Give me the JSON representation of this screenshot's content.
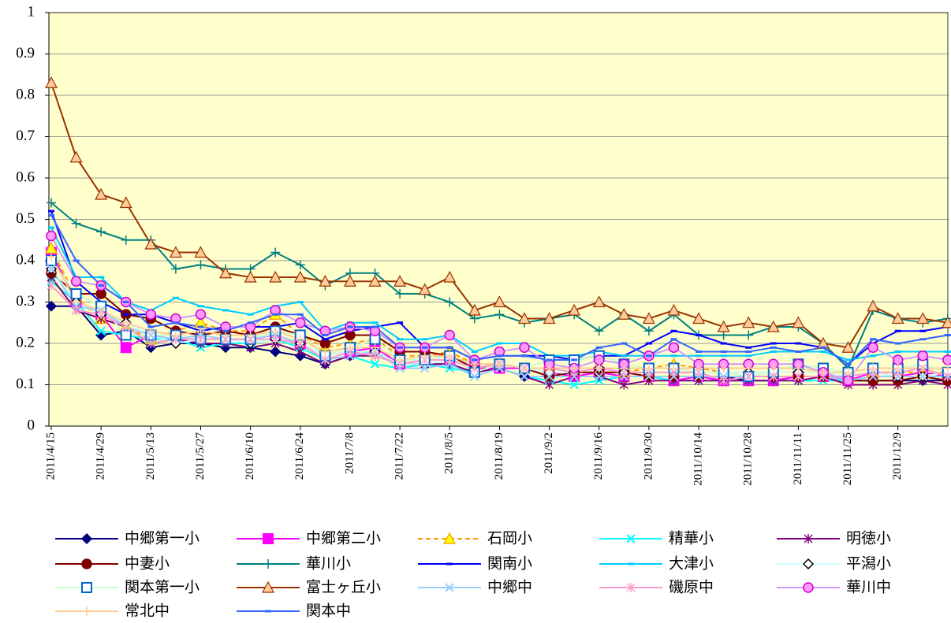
{
  "chart_data": {
    "type": "line",
    "categories": [
      "2011/4/15",
      null,
      "2011/4/29",
      null,
      "2011/5/13",
      null,
      "2011/5/27",
      null,
      "2011/6/10",
      null,
      "2011/6/24",
      null,
      "2011/7/8",
      null,
      "2011/7/22",
      null,
      "2011/8/5",
      null,
      "2011/8/19",
      null,
      "2011/9/2",
      null,
      "2011/9/16",
      null,
      "2011/9/30",
      null,
      "2011/10/14",
      null,
      "2011/10/28",
      null,
      "2011/11/11",
      null,
      "2011/11/25",
      null,
      "2011/12/9",
      null,
      null
    ],
    "ylim": [
      0,
      1
    ],
    "yticks": [
      0,
      0.1,
      0.2,
      0.3,
      0.4,
      0.5,
      0.6,
      0.7,
      0.8,
      0.9,
      1
    ],
    "grid": true,
    "legend": "bottom",
    "background": "#ffffcc",
    "series": [
      {
        "name": "中郷第一小",
        "color": "#000080",
        "marker": "diamond",
        "marker_fill": "#000080",
        "values": [
          0.29,
          0.29,
          0.22,
          0.23,
          0.19,
          0.2,
          0.2,
          0.19,
          0.19,
          0.18,
          0.17,
          0.15,
          0.17,
          0.18,
          0.15,
          0.15,
          0.15,
          0.13,
          0.14,
          0.12,
          0.12,
          0.12,
          0.12,
          0.12,
          0.12,
          0.12,
          0.12,
          0.12,
          0.11,
          0.11,
          0.12,
          0.12,
          0.11,
          0.11,
          0.11,
          0.11,
          0.11
        ]
      },
      {
        "name": "中郷第二小",
        "color": "#ff00ff",
        "marker": "square",
        "marker_fill": "#ff00ff",
        "values": [
          0.42,
          0.3,
          0.27,
          0.19,
          0.22,
          0.22,
          0.21,
          0.21,
          0.21,
          0.22,
          0.2,
          0.17,
          0.18,
          0.19,
          0.15,
          0.16,
          0.16,
          0.14,
          0.14,
          0.14,
          0.13,
          0.12,
          0.13,
          0.12,
          0.12,
          0.11,
          0.12,
          0.11,
          0.11,
          0.11,
          0.12,
          0.12,
          0.11,
          0.13,
          0.12,
          0.13,
          0.12
        ]
      },
      {
        "name": "石岡小",
        "color": "#ff9900",
        "marker": "triangle",
        "marker_fill": "#ffff00",
        "dash": true,
        "values": [
          0.43,
          0.31,
          0.26,
          0.24,
          0.21,
          0.23,
          0.25,
          0.23,
          0.23,
          0.27,
          0.22,
          0.19,
          0.2,
          0.21,
          0.17,
          0.17,
          0.18,
          0.15,
          0.15,
          0.14,
          0.14,
          0.14,
          0.14,
          0.13,
          0.14,
          0.15,
          0.14,
          0.13,
          0.13,
          0.13,
          0.13,
          0.13,
          0.12,
          0.13,
          0.13,
          0.13,
          0.13
        ]
      },
      {
        "name": "精華小",
        "color": "#00ffff",
        "marker": "x",
        "marker_fill": "none",
        "values": [
          0.35,
          0.3,
          0.23,
          0.22,
          0.21,
          0.21,
          0.19,
          0.2,
          0.2,
          0.21,
          0.19,
          0.16,
          0.17,
          0.15,
          0.14,
          0.15,
          0.14,
          0.13,
          0.14,
          0.12,
          0.11,
          0.1,
          0.11,
          0.12,
          0.12,
          0.11,
          0.11,
          0.11,
          0.11,
          0.11,
          0.11,
          0.11,
          0.11,
          0.12,
          0.12,
          0.12,
          0.12
        ]
      },
      {
        "name": "明徳小",
        "color": "#800080",
        "marker": "star",
        "marker_fill": "none",
        "values": [
          0.36,
          0.28,
          0.26,
          0.24,
          0.2,
          0.21,
          0.2,
          0.2,
          0.19,
          0.2,
          0.18,
          0.15,
          0.17,
          0.17,
          0.15,
          0.15,
          0.15,
          0.13,
          0.14,
          0.12,
          0.1,
          0.12,
          0.12,
          0.1,
          0.11,
          0.11,
          0.11,
          0.11,
          0.11,
          0.11,
          0.11,
          0.12,
          0.1,
          0.1,
          0.1,
          0.11,
          0.1
        ]
      },
      {
        "name": "中妻小",
        "color": "#800000",
        "marker": "circle",
        "marker_fill": "#800000",
        "values": [
          0.37,
          0.32,
          0.32,
          0.27,
          0.26,
          0.23,
          0.22,
          0.23,
          0.22,
          0.24,
          0.22,
          0.2,
          0.22,
          0.22,
          0.18,
          0.18,
          0.17,
          0.14,
          0.15,
          0.14,
          0.12,
          0.13,
          0.13,
          0.13,
          0.12,
          0.12,
          0.12,
          0.12,
          0.12,
          0.12,
          0.12,
          0.12,
          0.11,
          0.11,
          0.11,
          0.12,
          0.11
        ]
      },
      {
        "name": "華川小",
        "color": "#008080",
        "marker": "plus",
        "marker_fill": "none",
        "values": [
          0.54,
          0.49,
          0.47,
          0.45,
          0.45,
          0.38,
          0.39,
          0.38,
          0.38,
          0.42,
          0.39,
          0.34,
          0.37,
          0.37,
          0.32,
          0.32,
          0.3,
          0.26,
          0.27,
          0.25,
          0.26,
          0.27,
          0.23,
          0.27,
          0.23,
          0.27,
          0.22,
          0.22,
          0.22,
          0.24,
          0.24,
          0.2,
          0.14,
          0.28,
          0.26,
          0.25,
          0.26
        ]
      },
      {
        "name": "関南小",
        "color": "#0000ff",
        "marker": "dash",
        "marker_fill": "#0000ff",
        "values": [
          0.52,
          0.35,
          0.3,
          0.27,
          0.27,
          0.25,
          0.23,
          0.24,
          0.24,
          0.24,
          0.25,
          0.21,
          0.23,
          0.24,
          0.25,
          0.19,
          0.19,
          0.16,
          0.17,
          0.17,
          0.17,
          0.16,
          0.17,
          0.17,
          0.2,
          0.23,
          0.22,
          0.2,
          0.19,
          0.2,
          0.2,
          0.19,
          0.15,
          0.2,
          0.23,
          0.23,
          0.24
        ]
      },
      {
        "name": "大津小",
        "color": "#00ccff",
        "marker": "dash",
        "marker_fill": "#00ccff",
        "values": [
          0.48,
          0.36,
          0.36,
          0.3,
          0.28,
          0.31,
          0.29,
          0.28,
          0.27,
          0.29,
          0.3,
          0.23,
          0.25,
          0.25,
          0.21,
          0.21,
          0.22,
          0.18,
          0.2,
          0.2,
          0.17,
          0.17,
          0.18,
          0.17,
          0.17,
          0.17,
          0.17,
          0.17,
          0.17,
          0.18,
          0.18,
          0.18,
          0.16,
          0.17,
          0.18,
          0.18,
          0.18
        ]
      },
      {
        "name": "平潟小",
        "color": "#ccffff",
        "marker": "diamond",
        "marker_fill": "#ffffff",
        "marker_stroke": "#000000",
        "values": [
          0.38,
          0.3,
          0.27,
          0.25,
          0.22,
          0.2,
          0.21,
          0.21,
          0.2,
          0.21,
          0.2,
          0.17,
          0.18,
          0.18,
          0.15,
          0.15,
          0.16,
          0.14,
          0.15,
          0.14,
          0.13,
          0.13,
          0.14,
          0.13,
          0.13,
          0.13,
          0.13,
          0.13,
          0.13,
          0.13,
          0.13,
          0.13,
          0.12,
          0.13,
          0.12,
          0.12,
          0.13
        ]
      },
      {
        "name": "関本第一小",
        "color": "#ccffcc",
        "marker": "square",
        "marker_fill": "#ffffff",
        "marker_stroke": "#0066cc",
        "values": [
          0.4,
          0.32,
          0.29,
          0.22,
          0.22,
          0.22,
          0.21,
          0.21,
          0.21,
          0.23,
          0.22,
          0.17,
          0.19,
          0.21,
          0.16,
          0.16,
          0.17,
          0.13,
          0.15,
          0.14,
          0.16,
          0.16,
          0.17,
          0.15,
          0.14,
          0.14,
          0.13,
          0.13,
          0.12,
          0.13,
          0.15,
          0.14,
          0.13,
          0.14,
          0.14,
          0.15,
          0.13
        ]
      },
      {
        "name": "富士ヶ丘小",
        "color": "#993300",
        "marker": "triangle",
        "marker_fill": "#ffcc99",
        "values": [
          0.83,
          0.65,
          0.56,
          0.54,
          0.44,
          0.42,
          0.42,
          0.37,
          0.36,
          0.36,
          0.36,
          0.35,
          0.35,
          0.35,
          0.35,
          0.33,
          0.36,
          0.28,
          0.3,
          0.26,
          0.26,
          0.28,
          0.3,
          0.27,
          0.26,
          0.28,
          0.26,
          0.24,
          0.25,
          0.24,
          0.25,
          0.2,
          0.19,
          0.29,
          0.26,
          0.26,
          0.25
        ]
      },
      {
        "name": "中郷中",
        "color": "#99ccff",
        "marker": "x",
        "marker_fill": "none",
        "values": [
          0.38,
          0.29,
          0.28,
          0.24,
          0.22,
          0.21,
          0.22,
          0.21,
          0.21,
          0.22,
          0.2,
          0.16,
          0.17,
          0.18,
          0.14,
          0.14,
          0.15,
          0.12,
          0.14,
          0.12,
          0.12,
          0.12,
          0.12,
          0.12,
          0.12,
          0.12,
          0.12,
          0.12,
          0.12,
          0.12,
          0.12,
          0.12,
          0.11,
          0.12,
          0.12,
          0.12,
          0.12
        ]
      },
      {
        "name": "磯原中",
        "color": "#ff99cc",
        "marker": "star",
        "marker_fill": "none",
        "values": [
          0.34,
          0.28,
          0.27,
          0.24,
          0.2,
          0.21,
          0.21,
          0.21,
          0.21,
          0.21,
          0.2,
          0.16,
          0.18,
          0.17,
          0.15,
          0.16,
          0.16,
          0.14,
          0.15,
          0.14,
          0.14,
          0.13,
          0.14,
          0.13,
          0.13,
          0.13,
          0.13,
          0.11,
          0.12,
          0.12,
          0.12,
          0.12,
          0.12,
          0.13,
          0.13,
          0.14,
          0.12
        ]
      },
      {
        "name": "華川中",
        "color": "#cc99ff",
        "marker": "circle",
        "marker_fill": "#ff99ff",
        "marker_stroke": "#cc00cc",
        "values": [
          0.46,
          0.35,
          0.34,
          0.3,
          0.27,
          0.26,
          0.27,
          0.24,
          0.24,
          0.28,
          0.25,
          0.23,
          0.24,
          0.23,
          0.19,
          0.19,
          0.22,
          0.16,
          0.18,
          0.19,
          0.15,
          0.14,
          0.16,
          0.15,
          0.17,
          0.19,
          0.15,
          0.15,
          0.15,
          0.15,
          0.15,
          0.13,
          0.11,
          0.19,
          0.16,
          0.17,
          0.16
        ]
      },
      {
        "name": "常北中",
        "color": "#ffcc99",
        "marker": "plus",
        "marker_fill": "none",
        "values": [
          0.41,
          0.3,
          0.28,
          0.25,
          0.23,
          0.22,
          0.23,
          0.22,
          0.22,
          0.23,
          0.21,
          0.18,
          0.19,
          0.19,
          0.16,
          0.17,
          0.17,
          0.15,
          0.15,
          0.14,
          0.14,
          0.14,
          0.14,
          0.14,
          0.14,
          0.14,
          0.14,
          0.14,
          0.14,
          0.14,
          0.14,
          0.13,
          0.13,
          0.14,
          0.14,
          0.14,
          0.14
        ]
      },
      {
        "name": "関本中",
        "color": "#3366ff",
        "marker": "dash",
        "marker_fill": "#3366ff",
        "values": [
          0.51,
          0.4,
          0.34,
          0.3,
          0.24,
          0.25,
          0.24,
          0.23,
          0.25,
          0.27,
          0.27,
          0.22,
          0.24,
          0.24,
          0.19,
          0.19,
          0.19,
          0.16,
          0.17,
          0.17,
          0.16,
          0.16,
          0.19,
          0.2,
          0.17,
          0.21,
          0.18,
          0.18,
          0.18,
          0.19,
          0.18,
          0.19,
          0.15,
          0.21,
          0.2,
          0.21,
          0.22
        ]
      }
    ]
  }
}
